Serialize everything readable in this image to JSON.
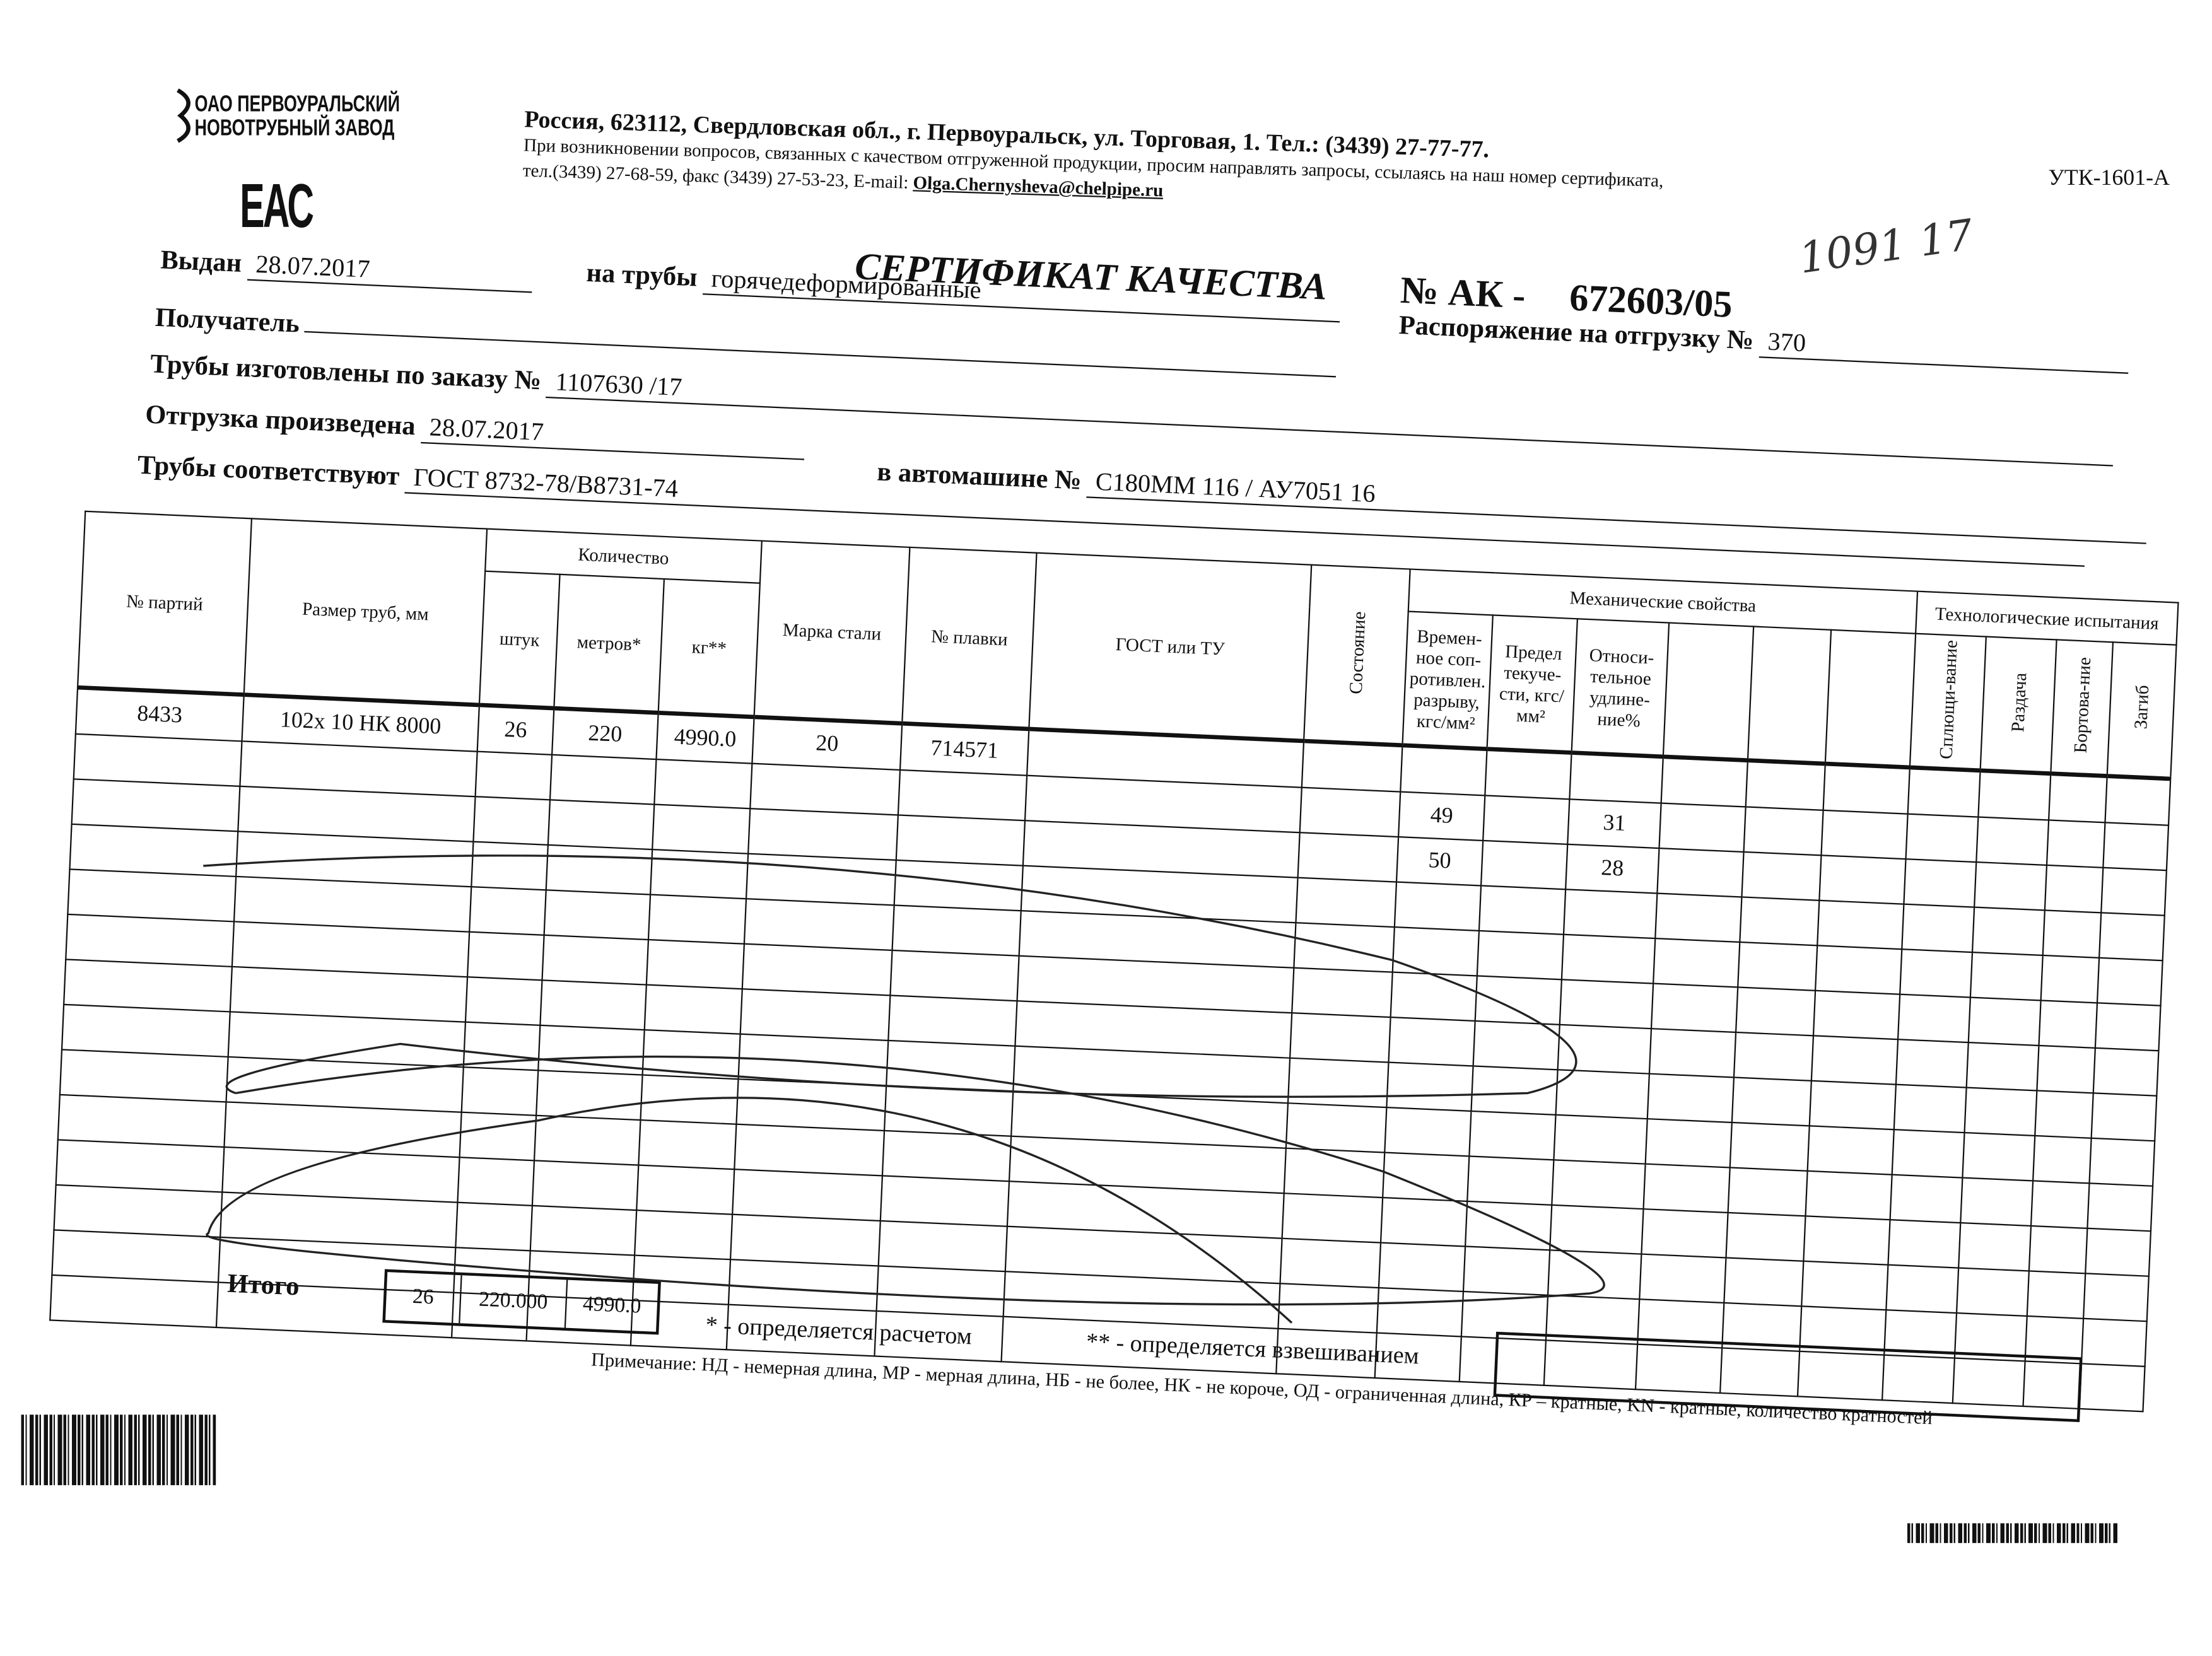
{
  "company": {
    "logo_line1": "ОАО ПЕРВОУРАЛЬСКИЙ",
    "logo_line2": "НОВОТРУБНЫЙ ЗАВОД",
    "mark": "ЕАС"
  },
  "address": {
    "line1": "Россия, 623112, Свердловская обл., г. Первоуральск, ул. Торговая, 1. Тел.: (3439) 27-77-77.",
    "line2": "При возникновении вопросов, связанных с качеством отгруженной продукции, просим направлять запросы, ссылаясь на наш номер сертификата,",
    "line3_prefix": "тел.(3439) 27-68-59, факс (3439) 27-53-23,  E-mail: ",
    "email": "Olga.Chernysheva@chelpipe.ru"
  },
  "form_code": "УТК-1601-А",
  "title": "СЕРТИФИКАТ КАЧЕСТВА",
  "number_label": "№  АК -",
  "number": "672603/05",
  "handwritten": "1091 17",
  "fields": {
    "issued_label": "Выдан",
    "issued": "28.07.2017",
    "pipes_label": "на трубы",
    "pipes": "горячедеформированные",
    "recipient_label": "Получатель",
    "recipient": "",
    "order_label": "Распоряжение на отгрузку №",
    "order": "370",
    "made_label": "Трубы изготовлены по заказу №",
    "made": "1107630   /17",
    "shipped_label": "Отгрузка произведена",
    "shipped": "28.07.2017",
    "truck_label": "в автомашине №",
    "truck": "С180ММ 116 / АУ7051 16",
    "conform_label": "Трубы соответствуют",
    "conform": "ГОСТ 8732-78/В8731-74"
  },
  "table": {
    "headers": {
      "batch": "№ партий",
      "size": "Размер труб, мм",
      "quantity": "Количество",
      "pcs": "штук",
      "meters": "метров*",
      "kg": "кг**",
      "steel": "Марка стали",
      "heat": "№ плавки",
      "gost": "ГОСТ или ТУ",
      "state": "Состояние",
      "mech": "Механические свойства",
      "tensile": "Времен-ное соп-ротивлен. разрыву, кгс/мм²",
      "yield": "Предел текуче-сти, кгс/мм²",
      "elong": "Относи-тельное удлине-ние%",
      "tech": "Технологические испытания",
      "flat": "Сплющи-вание",
      "expand": "Раздача",
      "flange": "Бортова-ние",
      "bend": "Загиб"
    },
    "rows": [
      {
        "batch": "8433",
        "size": "102х 10 НК 8000",
        "pcs": "26",
        "meters": "220",
        "kg": "4990.0",
        "steel": "20",
        "heat": "714571",
        "tensile": "",
        "elong": ""
      },
      {
        "batch": "",
        "size": "",
        "pcs": "",
        "meters": "",
        "kg": "",
        "steel": "",
        "heat": "",
        "tensile": "49",
        "elong": "31"
      },
      {
        "batch": "",
        "size": "",
        "pcs": "",
        "meters": "",
        "kg": "",
        "steel": "",
        "heat": "",
        "tensile": "50",
        "elong": "28"
      }
    ],
    "empty_rows": 11,
    "total_label": "Итого",
    "total_pcs": "26",
    "total_meters": "220.000",
    "total_kg": "4990.0"
  },
  "notes": {
    "calc": "* - определяется расчетом",
    "weigh": "** - определяется взвешиванием",
    "remark": "Примечание: НД - немерная длина, МР - мерная длина, НБ - не более, НК - не короче, ОД - ограниченная длина, КР – кратные, KN - кратные, количество кратностей"
  }
}
